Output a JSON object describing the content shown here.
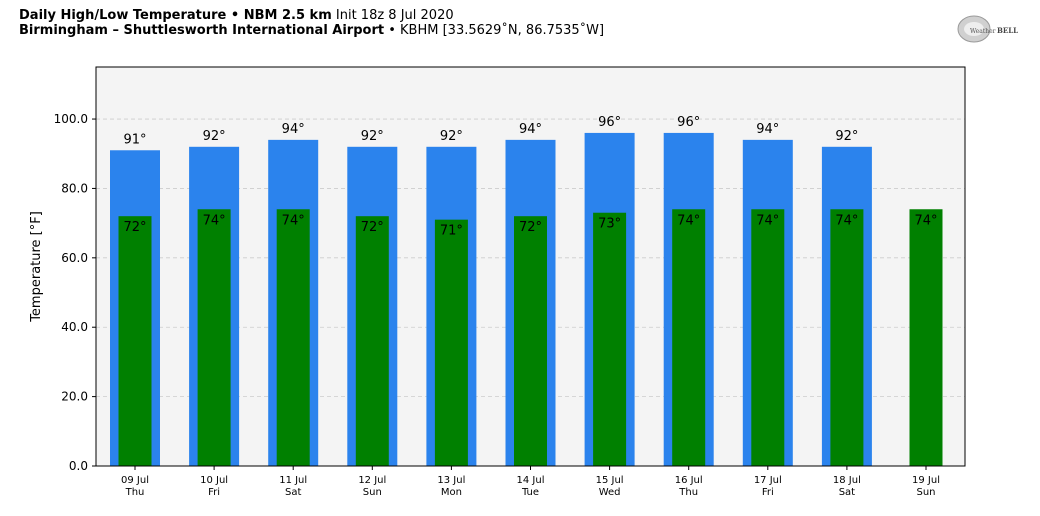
{
  "header": {
    "title_bold": "Daily High/Low Temperature • NBM 2.5 km",
    "title_init": "Init 18z 8 Jul 2020",
    "location_bold": "Birmingham – Shuttlesworth International Airport",
    "location_rest": "• KBHM [33.5629˚N, 86.7535˚W]"
  },
  "logo": {
    "text_left": "Weather",
    "text_right": "BELL",
    "icon": "weatherbell-logo"
  },
  "colors": {
    "high_bar": "#2b83ed",
    "low_bar": "#008000",
    "plot_bg": "#f4f4f4",
    "grid": "#cccccc"
  },
  "chart_data": {
    "type": "bar",
    "ylabel": "Temperature [°F]",
    "ylim": [
      0,
      115
    ],
    "yticks": [
      "0.0",
      "20.0",
      "40.0",
      "60.0",
      "80.0",
      "100.0"
    ],
    "grid": true,
    "categories": [
      {
        "date": "09 Jul",
        "day": "Thu"
      },
      {
        "date": "10 Jul",
        "day": "Fri"
      },
      {
        "date": "11 Jul",
        "day": "Sat"
      },
      {
        "date": "12 Jul",
        "day": "Sun"
      },
      {
        "date": "13 Jul",
        "day": "Mon"
      },
      {
        "date": "14 Jul",
        "day": "Tue"
      },
      {
        "date": "15 Jul",
        "day": "Wed"
      },
      {
        "date": "16 Jul",
        "day": "Thu"
      },
      {
        "date": "17 Jul",
        "day": "Fri"
      },
      {
        "date": "18 Jul",
        "day": "Sat"
      },
      {
        "date": "19 Jul",
        "day": "Sun"
      }
    ],
    "series": [
      {
        "values": [
          91,
          92,
          94,
          92,
          92,
          94,
          96,
          96,
          94,
          92,
          null
        ],
        "labels": [
          "91°",
          "92°",
          "94°",
          "92°",
          "92°",
          "94°",
          "96°",
          "96°",
          "94°",
          "92°",
          ""
        ]
      },
      {
        "values": [
          72,
          74,
          74,
          72,
          71,
          72,
          73,
          74,
          74,
          74,
          74
        ],
        "labels": [
          "72°",
          "74°",
          "74°",
          "72°",
          "71°",
          "72°",
          "73°",
          "74°",
          "74°",
          "74°",
          "74°"
        ]
      }
    ]
  }
}
